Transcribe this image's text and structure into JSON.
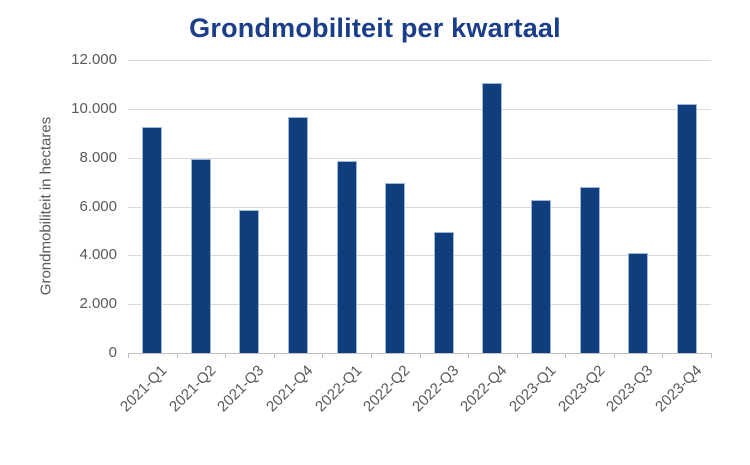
{
  "chart_data": {
    "type": "bar",
    "title": "Grondmobiliteit per kwartaal",
    "xlabel": "",
    "ylabel": "Grondmobiliteit in hectares",
    "categories": [
      "2021-Q1",
      "2021-Q2",
      "2021-Q3",
      "2021-Q4",
      "2022-Q1",
      "2022-Q2",
      "2022-Q3",
      "2022-Q4",
      "2023-Q1",
      "2023-Q2",
      "2023-Q3",
      "2023-Q4"
    ],
    "values": [
      9250,
      7950,
      5850,
      9650,
      7850,
      6950,
      4950,
      11050,
      6250,
      6800,
      4100,
      10200
    ],
    "ylim": [
      0,
      12000
    ],
    "yticks": [
      0,
      2000,
      4000,
      6000,
      8000,
      10000,
      12000
    ],
    "ytick_labels": [
      "0",
      "2.000",
      "4.000",
      "6.000",
      "8.000",
      "10.000",
      "12.000"
    ],
    "grid": true,
    "legend": false
  },
  "colors": {
    "bar": "#103E7C",
    "bar_border": "#9FB9DC",
    "title": "#1B3E8A",
    "axis_text": "#595959",
    "gridline": "#D9D9D9",
    "axis_line": "#BFBFBF",
    "background": "#FFFFFF"
  }
}
